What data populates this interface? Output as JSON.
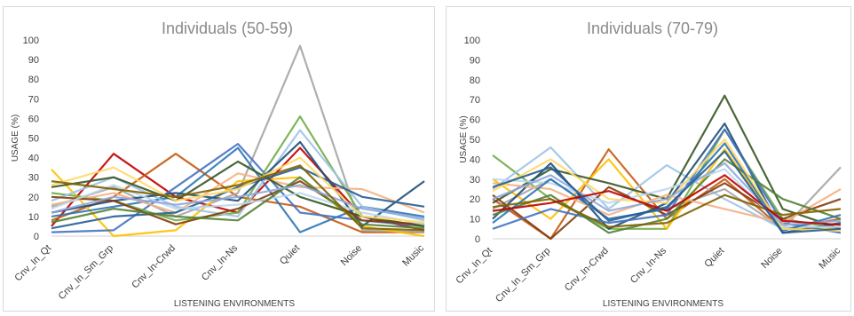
{
  "chart_data": [
    {
      "type": "line",
      "title": "Individuals (50-59)",
      "xlabel": "LISTENING ENVIRONMENTS",
      "ylabel": "USAGE (%)",
      "categories": [
        "Cnv_In_Qt",
        "Cnv_In_Sm_Grp",
        "Cnv_In-Crwd",
        "Cnv_In-Ns",
        "Quiet",
        "Noise",
        "Music"
      ],
      "yticks": [
        "0",
        "10",
        "20",
        "30",
        "40",
        "50",
        "60",
        "70",
        "80",
        "90",
        "100"
      ],
      "ylim": [
        0,
        100
      ],
      "grid": false,
      "series": [
        {
          "color": "#c00000",
          "values": [
            5,
            42,
            20,
            12,
            45,
            10,
            3
          ]
        },
        {
          "color": "#c55a11",
          "values": [
            8,
            20,
            42,
            20,
            15,
            2,
            2
          ]
        },
        {
          "color": "#a5a5a5",
          "values": [
            15,
            25,
            10,
            22,
            97,
            3,
            2
          ]
        },
        {
          "color": "#ffc000",
          "values": [
            34,
            0,
            3,
            28,
            30,
            5,
            0
          ]
        },
        {
          "color": "#4472c4",
          "values": [
            2,
            3,
            25,
            47,
            12,
            8,
            5
          ]
        },
        {
          "color": "#2e75b6",
          "values": [
            10,
            15,
            20,
            45,
            2,
            15,
            10
          ]
        },
        {
          "color": "#70ad47",
          "values": [
            22,
            18,
            8,
            12,
            61,
            10,
            5
          ]
        },
        {
          "color": "#9dc3e6",
          "values": [
            18,
            30,
            15,
            10,
            54,
            15,
            8
          ]
        },
        {
          "color": "#1f4e79",
          "values": [
            12,
            18,
            22,
            18,
            48,
            5,
            28
          ]
        },
        {
          "color": "#f4b183",
          "values": [
            16,
            22,
            12,
            32,
            25,
            24,
            12
          ]
        },
        {
          "color": "#375623",
          "values": [
            25,
            30,
            18,
            38,
            20,
            10,
            5
          ]
        },
        {
          "color": "#255e91",
          "values": [
            4,
            10,
            12,
            25,
            35,
            20,
            15
          ]
        },
        {
          "color": "#843c0c",
          "values": [
            20,
            18,
            6,
            14,
            28,
            8,
            6
          ]
        },
        {
          "color": "#bdd7ee",
          "values": [
            14,
            26,
            14,
            16,
            22,
            12,
            6
          ]
        },
        {
          "color": "#548235",
          "values": [
            7,
            14,
            10,
            8,
            30,
            6,
            4
          ]
        },
        {
          "color": "#ffd966",
          "values": [
            26,
            35,
            18,
            24,
            40,
            10,
            7
          ]
        },
        {
          "color": "#8faadc",
          "values": [
            12,
            20,
            16,
            20,
            26,
            14,
            9
          ]
        },
        {
          "color": "#7f6000",
          "values": [
            28,
            24,
            20,
            26,
            36,
            4,
            3
          ]
        }
      ]
    },
    {
      "type": "line",
      "title": "Individuals (70-79)",
      "xlabel": "LISTENING ENVIRONMENTS",
      "ylabel": "USAGE (%)",
      "categories": [
        "Cnv_In_Qt",
        "Cnv_In_Sm_Grp",
        "Cnv_In-Crwd",
        "Cnv_In-Ns",
        "Quiet",
        "Noise",
        "Music"
      ],
      "yticks": [
        "0",
        "10",
        "20",
        "30",
        "40",
        "50",
        "60",
        "70",
        "80",
        "90",
        "100"
      ],
      "ylim": [
        0,
        100
      ],
      "grid": false,
      "series": [
        {
          "color": "#c55a11",
          "values": [
            20,
            0,
            45,
            10,
            30,
            5,
            10
          ]
        },
        {
          "color": "#70ad47",
          "values": [
            42,
            20,
            5,
            5,
            55,
            10,
            5
          ]
        },
        {
          "color": "#9dc3e6",
          "values": [
            25,
            46,
            15,
            37,
            20,
            5,
            5
          ]
        },
        {
          "color": "#a5a5a5",
          "values": [
            15,
            30,
            10,
            15,
            25,
            5,
            36
          ]
        },
        {
          "color": "#ffc000",
          "values": [
            30,
            10,
            40,
            5,
            45,
            5,
            5
          ]
        },
        {
          "color": "#375623",
          "values": [
            18,
            35,
            28,
            20,
            72,
            15,
            5
          ]
        },
        {
          "color": "#1f4e79",
          "values": [
            10,
            38,
            5,
            18,
            58,
            3,
            8
          ]
        },
        {
          "color": "#843c0c",
          "values": [
            22,
            0,
            26,
            12,
            28,
            10,
            20
          ]
        },
        {
          "color": "#4472c4",
          "values": [
            5,
            15,
            8,
            12,
            55,
            8,
            3
          ]
        },
        {
          "color": "#f4b183",
          "values": [
            28,
            25,
            12,
            22,
            15,
            8,
            25
          ]
        },
        {
          "color": "#548235",
          "values": [
            12,
            22,
            3,
            10,
            40,
            20,
            10
          ]
        },
        {
          "color": "#bdd7ee",
          "values": [
            30,
            28,
            18,
            25,
            35,
            6,
            6
          ]
        },
        {
          "color": "#2e75b6",
          "values": [
            8,
            30,
            10,
            15,
            48,
            4,
            12
          ]
        },
        {
          "color": "#ffd966",
          "values": [
            24,
            40,
            20,
            18,
            50,
            5,
            4
          ]
        },
        {
          "color": "#7f6000",
          "values": [
            16,
            20,
            6,
            8,
            22,
            12,
            15
          ]
        },
        {
          "color": "#8faadc",
          "values": [
            20,
            32,
            14,
            20,
            38,
            7,
            9
          ]
        },
        {
          "color": "#c00000",
          "values": [
            14,
            18,
            24,
            14,
            32,
            9,
            7
          ]
        },
        {
          "color": "#255e91",
          "values": [
            26,
            36,
            9,
            16,
            44,
            3,
            5
          ]
        }
      ]
    }
  ]
}
